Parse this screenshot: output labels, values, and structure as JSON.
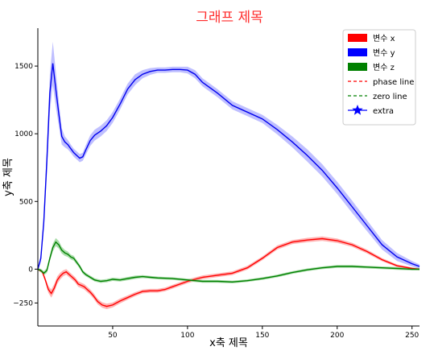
{
  "chart_data": {
    "type": "line",
    "title": "그래프 제목",
    "xlabel": "x축 제목",
    "ylabel": "y축 제목",
    "xlim": [
      0,
      255
    ],
    "ylim": [
      -420,
      1780
    ],
    "xticks": [
      50,
      100,
      150,
      200,
      250
    ],
    "yticks": [
      -250,
      0,
      500,
      1000,
      1500
    ],
    "grid": false,
    "legend_position": "top-right",
    "series": [
      {
        "name": "변수 x",
        "color": "#ff0000",
        "band_color": "#ff9a9a",
        "x": [
          0,
          3,
          5,
          7,
          9,
          11,
          13,
          15,
          17,
          19,
          21,
          23,
          25,
          27,
          29,
          31,
          33,
          35,
          37,
          40,
          43,
          46,
          50,
          55,
          60,
          65,
          70,
          75,
          80,
          85,
          90,
          95,
          100,
          110,
          120,
          130,
          140,
          150,
          160,
          170,
          180,
          190,
          200,
          210,
          220,
          230,
          240,
          250,
          255
        ],
        "y": [
          0,
          -20,
          -80,
          -150,
          -180,
          -140,
          -80,
          -50,
          -30,
          -20,
          -40,
          -60,
          -80,
          -110,
          -120,
          -130,
          -150,
          -170,
          -195,
          -240,
          -265,
          -275,
          -265,
          -235,
          -210,
          -185,
          -165,
          -160,
          -160,
          -150,
          -130,
          -110,
          -90,
          -60,
          -45,
          -30,
          10,
          80,
          160,
          200,
          215,
          225,
          210,
          180,
          130,
          70,
          25,
          5,
          0
        ],
        "band": [
          8,
          12,
          18,
          25,
          30,
          30,
          28,
          25,
          22,
          20,
          20,
          20,
          20,
          20,
          20,
          20,
          20,
          20,
          20,
          20,
          20,
          20,
          18,
          18,
          16,
          15,
          14,
          14,
          14,
          14,
          14,
          14,
          14,
          14,
          14,
          14,
          14,
          14,
          15,
          15,
          16,
          16,
          16,
          15,
          14,
          12,
          10,
          8,
          8
        ]
      },
      {
        "name": "변수 y",
        "color": "#0000ee",
        "band_color": "#a9a9ff",
        "x": [
          0,
          2,
          4,
          6,
          8,
          10,
          12,
          14,
          16,
          18,
          20,
          22,
          24,
          26,
          28,
          30,
          32,
          35,
          38,
          42,
          46,
          50,
          55,
          60,
          65,
          70,
          75,
          80,
          85,
          90,
          95,
          100,
          105,
          110,
          120,
          130,
          140,
          150,
          160,
          170,
          180,
          190,
          200,
          210,
          220,
          230,
          240,
          250,
          255
        ],
        "y": [
          0,
          80,
          350,
          800,
          1300,
          1520,
          1330,
          1150,
          980,
          940,
          920,
          890,
          860,
          840,
          820,
          830,
          880,
          950,
          990,
          1020,
          1060,
          1120,
          1220,
          1330,
          1400,
          1440,
          1460,
          1470,
          1470,
          1475,
          1475,
          1470,
          1440,
          1380,
          1300,
          1210,
          1160,
          1110,
          1030,
          940,
          840,
          730,
          600,
          460,
          320,
          180,
          90,
          40,
          20
        ],
        "band": [
          10,
          30,
          60,
          100,
          140,
          160,
          130,
          90,
          60,
          40,
          35,
          30,
          30,
          30,
          30,
          30,
          35,
          40,
          40,
          40,
          40,
          40,
          40,
          40,
          40,
          30,
          25,
          20,
          20,
          20,
          20,
          25,
          30,
          30,
          30,
          30,
          30,
          30,
          35,
          40,
          45,
          45,
          45,
          45,
          40,
          35,
          30,
          20,
          15
        ]
      },
      {
        "name": "변수 z",
        "color": "#008000",
        "band_color": "#8fd18f",
        "x": [
          0,
          2,
          4,
          6,
          8,
          10,
          12,
          14,
          16,
          18,
          20,
          22,
          24,
          26,
          28,
          30,
          32,
          35,
          38,
          42,
          46,
          50,
          55,
          60,
          65,
          70,
          75,
          80,
          90,
          100,
          110,
          120,
          130,
          140,
          150,
          160,
          170,
          180,
          190,
          200,
          210,
          220,
          230,
          240,
          250,
          255
        ],
        "y": [
          0,
          -10,
          -30,
          -10,
          80,
          160,
          200,
          180,
          140,
          120,
          110,
          90,
          80,
          50,
          20,
          -20,
          -40,
          -60,
          -80,
          -90,
          -85,
          -75,
          -80,
          -70,
          -60,
          -55,
          -60,
          -65,
          -70,
          -80,
          -90,
          -90,
          -95,
          -85,
          -70,
          -50,
          -25,
          -5,
          10,
          20,
          20,
          15,
          10,
          5,
          0,
          0
        ],
        "band": [
          8,
          12,
          15,
          18,
          22,
          28,
          30,
          28,
          25,
          22,
          20,
          18,
          18,
          16,
          15,
          14,
          13,
          12,
          12,
          12,
          12,
          12,
          12,
          12,
          12,
          11,
          10,
          10,
          10,
          10,
          10,
          10,
          10,
          10,
          10,
          10,
          10,
          10,
          10,
          10,
          10,
          10,
          10,
          10,
          10,
          10
        ]
      }
    ],
    "legend": [
      {
        "label": "변수 x",
        "kind": "patch",
        "color": "#ff0000"
      },
      {
        "label": "변수 y",
        "kind": "patch",
        "color": "#0000ff"
      },
      {
        "label": "변수 z",
        "kind": "patch",
        "color": "#008000"
      },
      {
        "label": "phase line",
        "kind": "dashed",
        "color": "#ff0000"
      },
      {
        "label": "zero line",
        "kind": "dashed",
        "color": "#008000"
      },
      {
        "label": "extra",
        "kind": "star",
        "color": "#0000ff"
      }
    ]
  }
}
